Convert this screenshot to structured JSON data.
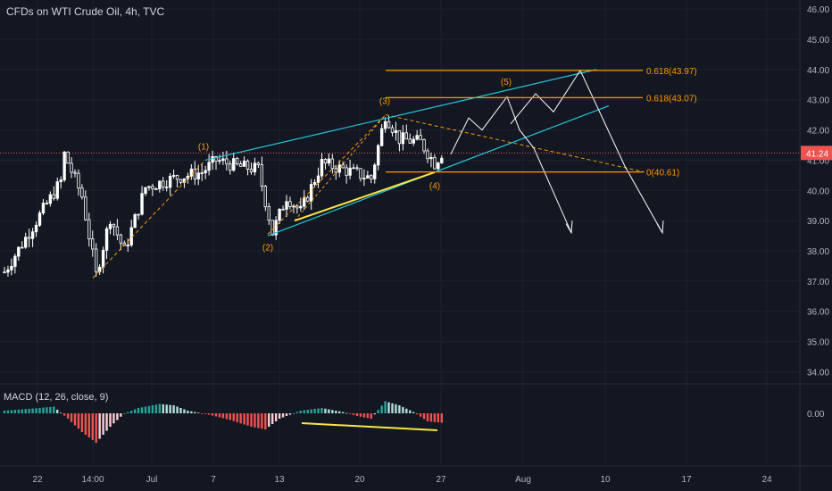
{
  "chart_title": "CFDs on WTI Crude Oil, 4h, TVC",
  "macd_label": "MACD (12, 26, close, 9)",
  "colors": {
    "background": "#131722",
    "up": "#26a69a",
    "down": "#ef5350",
    "candle": "#ffffff",
    "fib": "#ff9800",
    "channel": "#26c6da",
    "wave_label": "#ff9800",
    "trend": "#f9e547",
    "axis_text": "#b2b5be",
    "price_tag": "#ef5350"
  },
  "chart_data": [
    {
      "type": "candlestick",
      "symbol": "CFDs on WTI Crude Oil",
      "interval": "4h",
      "source": "TVC",
      "ylim": [
        33.6,
        46.3
      ],
      "y_ticks": [
        "46.00",
        "45.00",
        "44.00",
        "43.00",
        "42.00",
        "41.00",
        "40.00",
        "39.00",
        "38.00",
        "37.00",
        "36.00",
        "35.00",
        "34.00"
      ],
      "x_ticks": [
        "22",
        "14:00",
        "Jul",
        "7",
        "13",
        "20",
        "27",
        "Aug",
        "10",
        "17",
        "24"
      ],
      "last_price": "41.24",
      "approx_series": {
        "note_x": "bar index 0-124",
        "anchor_points": [
          [
            0,
            37.3
          ],
          [
            8,
            38.8
          ],
          [
            16,
            40.3
          ],
          [
            17,
            41.2
          ],
          [
            22,
            39.8
          ],
          [
            26,
            37.2
          ],
          [
            30,
            39.1
          ],
          [
            34,
            38.0
          ],
          [
            40,
            40.1
          ],
          [
            48,
            40.4
          ],
          [
            56,
            40.6
          ],
          [
            60,
            41.0
          ],
          [
            66,
            40.8
          ],
          [
            72,
            40.7
          ],
          [
            76,
            38.6
          ],
          [
            80,
            39.8
          ],
          [
            84,
            39.3
          ],
          [
            90,
            40.9
          ],
          [
            96,
            40.7
          ],
          [
            104,
            40.4
          ],
          [
            108,
            42.5
          ],
          [
            112,
            41.7
          ],
          [
            118,
            41.6
          ],
          [
            122,
            40.9
          ],
          [
            124,
            41.24
          ]
        ]
      },
      "fib_levels": [
        {
          "label": "0.618(43.97)",
          "value": 43.97
        },
        {
          "label": "0.618(43.07)",
          "value": 43.07
        },
        {
          "label": "0(40.61)",
          "value": 40.61
        }
      ],
      "wave_labels": [
        {
          "label": "(1)",
          "value": 41.0
        },
        {
          "label": "(2)",
          "value": 38.55
        },
        {
          "label": "(3)",
          "value": 42.5
        },
        {
          "label": "(4)",
          "value": 40.65
        },
        {
          "label": "(5)",
          "value": 43.2
        }
      ]
    },
    {
      "type": "bar",
      "name": "MACD (12, 26, close, 9)",
      "y_ticks": [
        "0.00"
      ],
      "approx_histogram_profile": [
        [
          0,
          0.1
        ],
        [
          10,
          0.2
        ],
        [
          14,
          0.25
        ],
        [
          18,
          -0.2
        ],
        [
          22,
          -0.7
        ],
        [
          26,
          -1.1
        ],
        [
          30,
          -0.5
        ],
        [
          34,
          0.0
        ],
        [
          38,
          0.2
        ],
        [
          44,
          0.35
        ],
        [
          48,
          0.3
        ],
        [
          52,
          0.1
        ],
        [
          58,
          -0.05
        ],
        [
          64,
          -0.25
        ],
        [
          70,
          -0.5
        ],
        [
          74,
          -0.6
        ],
        [
          78,
          -0.2
        ],
        [
          84,
          0.1
        ],
        [
          90,
          0.2
        ],
        [
          96,
          0.05
        ],
        [
          100,
          -0.1
        ],
        [
          104,
          -0.2
        ],
        [
          108,
          0.45
        ],
        [
          112,
          0.3
        ],
        [
          116,
          0.05
        ],
        [
          120,
          -0.3
        ],
        [
          124,
          -0.35
        ]
      ]
    }
  ]
}
